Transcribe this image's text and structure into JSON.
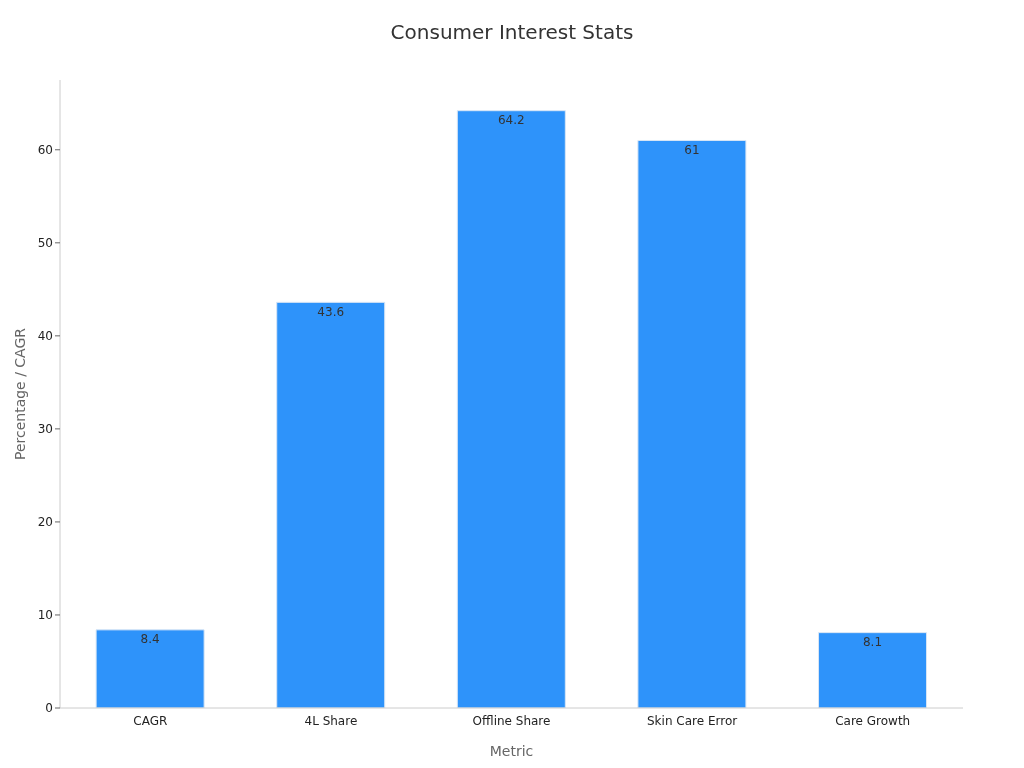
{
  "chart_data": {
    "type": "bar",
    "title": "Consumer Interest Stats",
    "xlabel": "Metric",
    "ylabel": "Percentage / CAGR",
    "categories": [
      "CAGR",
      "4L Share",
      "Offline Share",
      "Skin Care Error",
      "Care Growth"
    ],
    "values": [
      8.4,
      43.6,
      64.2,
      61,
      8.1
    ],
    "color": "#2e93fa",
    "ylim": [
      0,
      67.5
    ],
    "yticks": [
      0,
      10,
      20,
      30,
      40,
      50,
      60
    ],
    "grid": false,
    "data_labels": true
  }
}
